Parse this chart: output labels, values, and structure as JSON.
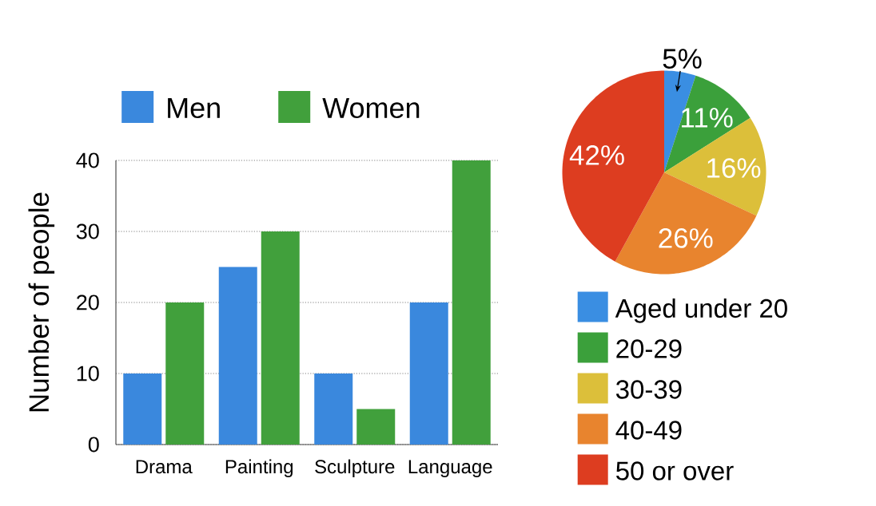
{
  "chart_data": [
    {
      "type": "bar",
      "categories": [
        "Drama",
        "Painting",
        "Sculpture",
        "Language"
      ],
      "series": [
        {
          "name": "Men",
          "color": "#3a88dd",
          "values": [
            10,
            25,
            10,
            20
          ]
        },
        {
          "name": "Women",
          "color": "#41a03c",
          "values": [
            20,
            30,
            5,
            40
          ]
        }
      ],
      "ylabel": "Number of people",
      "ylim": [
        0,
        40
      ],
      "yticks": [
        0,
        10,
        20,
        30,
        40
      ],
      "grid": "y",
      "legend": "top"
    },
    {
      "type": "pie",
      "categories": [
        "Aged under 20",
        "20-29",
        "30-39",
        "40-49",
        "50 or over"
      ],
      "values": [
        5,
        11,
        16,
        26,
        42
      ],
      "colors": [
        "#3a8ee2",
        "#3ba03b",
        "#dcbf3a",
        "#e8842e",
        "#dd3d20"
      ],
      "value_labels": [
        "5%",
        "11%",
        "16%",
        "26%",
        "42%"
      ],
      "legend": "bottom"
    }
  ]
}
